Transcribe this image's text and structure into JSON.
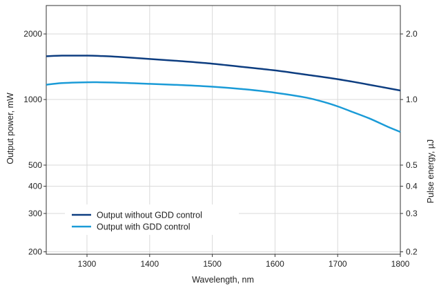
{
  "chart_data": {
    "type": "line",
    "xlabel": "Wavelength, nm",
    "ylabel": "Output power, mW",
    "y2label": "Pulse energy, µJ",
    "xlim": [
      1235,
      1800
    ],
    "ylim": [
      195,
      2700
    ],
    "yscale": "log",
    "x_ticks": [
      1300,
      1400,
      1500,
      1600,
      1700,
      1800
    ],
    "x_tick_labels": [
      "1300",
      "1400",
      "1500",
      "1600",
      "1700",
      "1800"
    ],
    "y_ticks": [
      200,
      300,
      400,
      500,
      1000,
      2000
    ],
    "y_tick_labels": [
      "200",
      "300",
      "400",
      "500",
      "1000",
      "2000"
    ],
    "y2_tick_labels": [
      "0.2",
      "0.3",
      "0.4",
      "0.5",
      "1.0",
      "2.0"
    ],
    "grid": true,
    "legend_position": "bottom-left",
    "series": [
      {
        "name": "Output without GDD control",
        "color": "#0d3d80",
        "x": [
          1235,
          1260,
          1300,
          1320,
          1350,
          1400,
          1450,
          1500,
          1550,
          1600,
          1650,
          1700,
          1750,
          1800
        ],
        "y": [
          1580,
          1590,
          1590,
          1585,
          1570,
          1535,
          1500,
          1460,
          1410,
          1360,
          1300,
          1240,
          1170,
          1100
        ]
      },
      {
        "name": "Output with GDD control",
        "color": "#1a9bd7",
        "x": [
          1235,
          1260,
          1300,
          1320,
          1350,
          1400,
          1450,
          1500,
          1550,
          1600,
          1650,
          1680,
          1700,
          1720,
          1750,
          1780,
          1800
        ],
        "y": [
          1170,
          1190,
          1200,
          1200,
          1195,
          1180,
          1165,
          1145,
          1115,
          1075,
          1020,
          970,
          930,
          885,
          820,
          750,
          710
        ]
      }
    ]
  }
}
